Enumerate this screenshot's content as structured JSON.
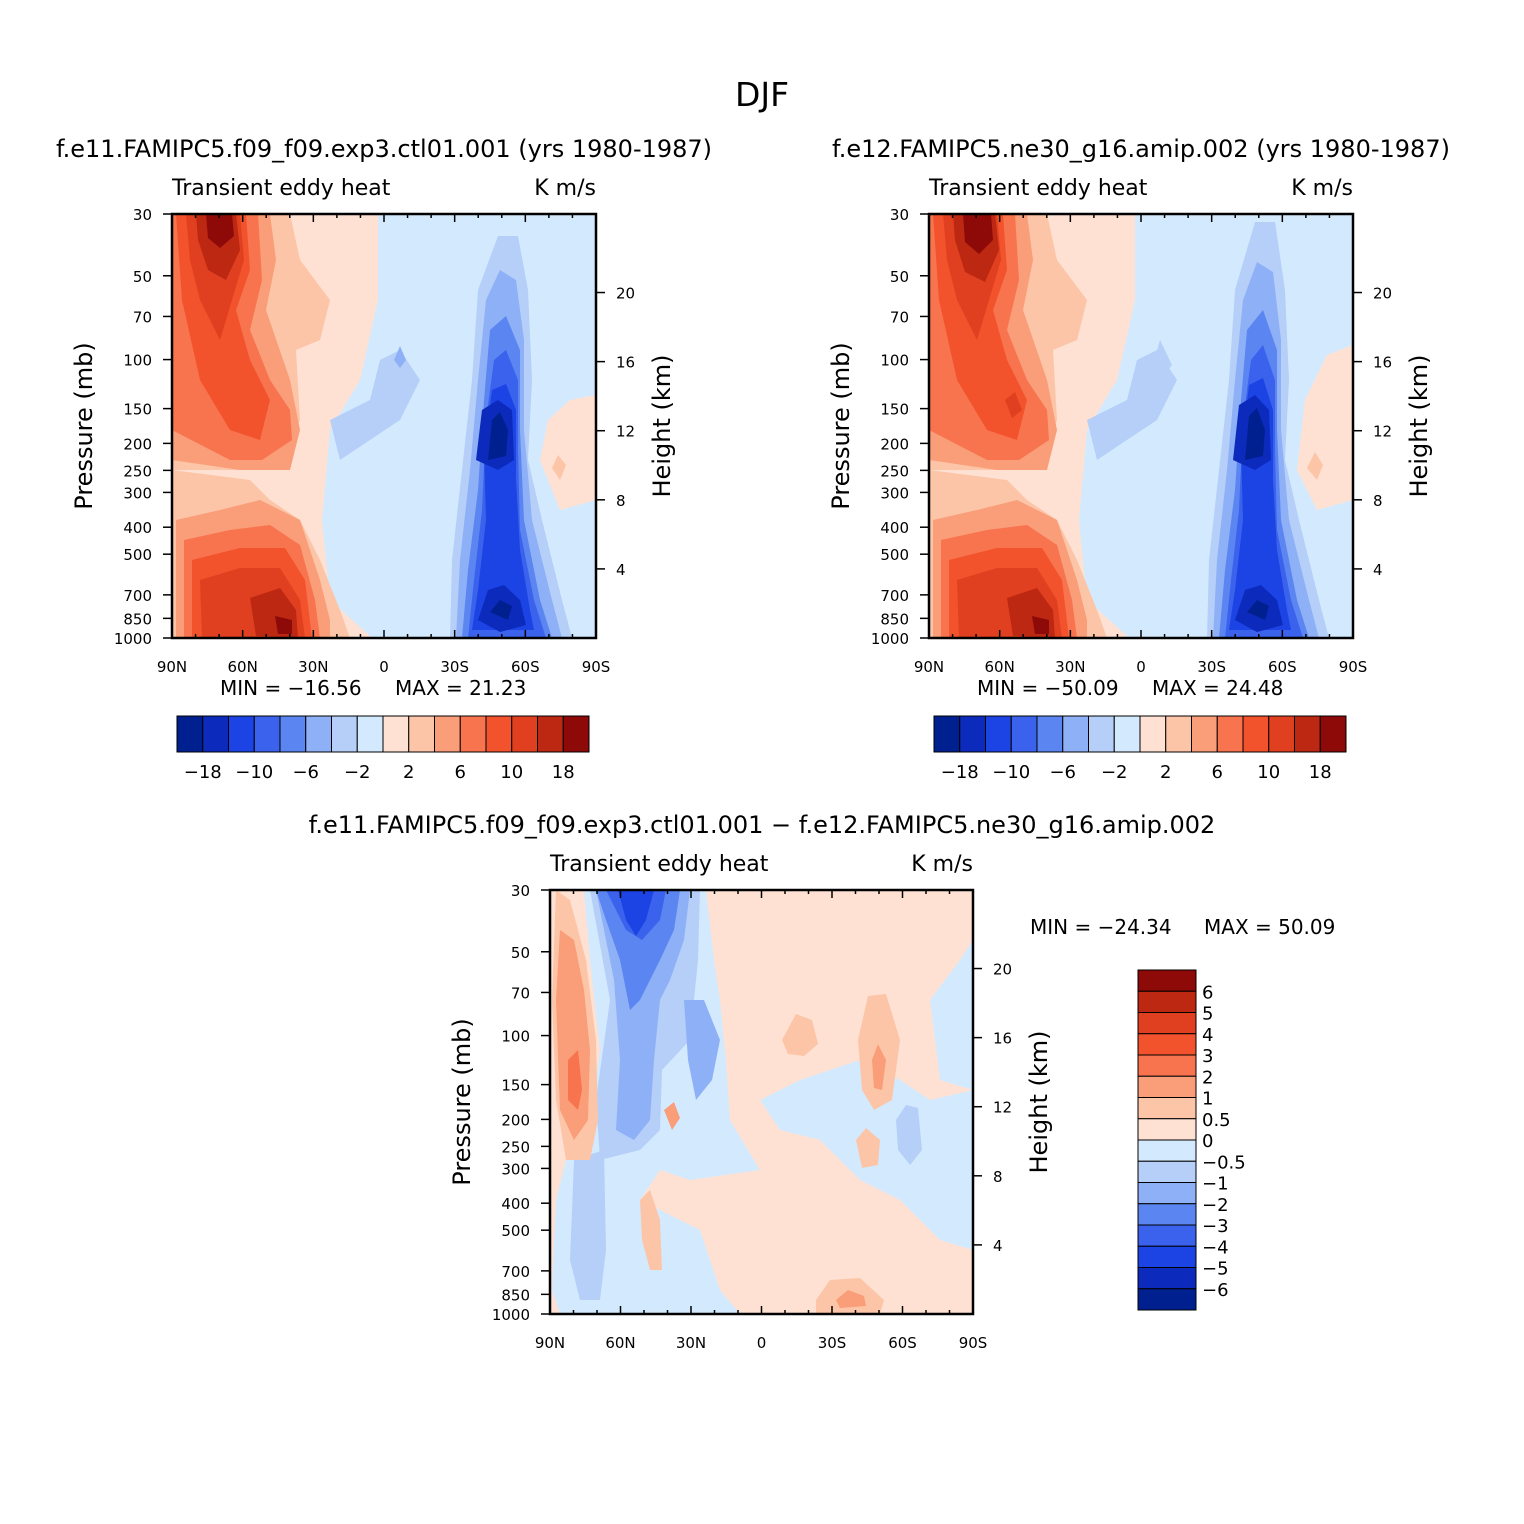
{
  "main_title": "DJF",
  "chart_data": [
    {
      "type": "heatmap",
      "id": "p1",
      "title": "f.e11.FAMIPC5.f09_f09.exp3.ctl01.001 (yrs 1980-1987)",
      "subtitle_left": "Transient eddy heat",
      "subtitle_right": "K m/s",
      "xlabel": "",
      "ylabel": "Pressure (mb)",
      "y2label": "Height (km)",
      "x_ticks": [
        "90N",
        "60N",
        "30N",
        "0",
        "30S",
        "60S",
        "90S"
      ],
      "x_tick_values": [
        90,
        60,
        30,
        0,
        -30,
        -60,
        -90
      ],
      "y_ticks": [
        "30",
        "50",
        "70",
        "100",
        "150",
        "200",
        "250",
        "300",
        "400",
        "500",
        "700",
        "850",
        "1000"
      ],
      "y_tick_values": [
        30,
        50,
        70,
        100,
        150,
        200,
        250,
        300,
        400,
        500,
        700,
        850,
        1000
      ],
      "y2_ticks": [
        "4",
        "8",
        "12",
        "16",
        "20"
      ],
      "ylim": [
        1000,
        30
      ],
      "xlim": [
        90,
        -90
      ],
      "min_label": "MIN = −16.56",
      "max_label": "MAX =  21.23",
      "colorbar": {
        "orientation": "horizontal",
        "labels": [
          "−18",
          "−10",
          "−6",
          "−2",
          "2",
          "6",
          "10",
          "18"
        ],
        "levels": [
          -18,
          -14,
          -10,
          -8,
          -6,
          -4,
          -2,
          0,
          2,
          4,
          6,
          8,
          10,
          14,
          18
        ]
      },
      "features": [
        {
          "lat": 65,
          "p": 35,
          "value": 20
        },
        {
          "lat": 60,
          "p": 80,
          "value": 12
        },
        {
          "lat": 50,
          "p": 170,
          "value": 8
        },
        {
          "lat": 45,
          "p": 830,
          "value": 18
        },
        {
          "lat": 60,
          "p": 650,
          "value": 10
        },
        {
          "lat": -50,
          "p": 190,
          "value": -16
        },
        {
          "lat": -50,
          "p": 820,
          "value": -15
        },
        {
          "lat": -70,
          "p": 240,
          "value": 2
        }
      ]
    },
    {
      "type": "heatmap",
      "id": "p2",
      "title": "f.e12.FAMIPC5.ne30_g16.amip.002 (yrs 1980-1987)",
      "subtitle_left": "Transient eddy heat",
      "subtitle_right": "K m/s",
      "xlabel": "",
      "ylabel": "Pressure (mb)",
      "y2label": "Height (km)",
      "x_ticks": [
        "90N",
        "60N",
        "30N",
        "0",
        "30S",
        "60S",
        "90S"
      ],
      "x_tick_values": [
        90,
        60,
        30,
        0,
        -30,
        -60,
        -90
      ],
      "y_ticks": [
        "30",
        "50",
        "70",
        "100",
        "150",
        "200",
        "250",
        "300",
        "400",
        "500",
        "700",
        "850",
        "1000"
      ],
      "y_tick_values": [
        30,
        50,
        70,
        100,
        150,
        200,
        250,
        300,
        400,
        500,
        700,
        850,
        1000
      ],
      "y2_ticks": [
        "4",
        "8",
        "12",
        "16",
        "20"
      ],
      "ylim": [
        1000,
        30
      ],
      "xlim": [
        90,
        -90
      ],
      "min_label": "MIN = −50.09",
      "max_label": "MAX =  24.48",
      "colorbar": {
        "orientation": "horizontal",
        "labels": [
          "−18",
          "−10",
          "−6",
          "−2",
          "2",
          "6",
          "10",
          "18"
        ],
        "levels": [
          -18,
          -14,
          -10,
          -8,
          -6,
          -4,
          -2,
          0,
          2,
          4,
          6,
          8,
          10,
          14,
          18
        ]
      },
      "features": [
        {
          "lat": 65,
          "p": 35,
          "value": 22
        },
        {
          "lat": 60,
          "p": 80,
          "value": 12
        },
        {
          "lat": 50,
          "p": 170,
          "value": 9
        },
        {
          "lat": 45,
          "p": 830,
          "value": 19
        },
        {
          "lat": 60,
          "p": 650,
          "value": 10
        },
        {
          "lat": -50,
          "p": 190,
          "value": -16
        },
        {
          "lat": -50,
          "p": 820,
          "value": -15
        },
        {
          "lat": -70,
          "p": 240,
          "value": 2
        }
      ]
    },
    {
      "type": "heatmap",
      "id": "p3",
      "title": "f.e11.FAMIPC5.f09_f09.exp3.ctl01.001 − f.e12.FAMIPC5.ne30_g16.amip.002",
      "subtitle_left": "Transient eddy heat",
      "subtitle_right": "K m/s",
      "xlabel": "",
      "ylabel": "Pressure (mb)",
      "y2label": "Height (km)",
      "x_ticks": [
        "90N",
        "60N",
        "30N",
        "0",
        "30S",
        "60S",
        "90S"
      ],
      "x_tick_values": [
        90,
        60,
        30,
        0,
        -30,
        -60,
        -90
      ],
      "y_ticks": [
        "30",
        "50",
        "70",
        "100",
        "150",
        "200",
        "250",
        "300",
        "400",
        "500",
        "700",
        "850",
        "1000"
      ],
      "y_tick_values": [
        30,
        50,
        70,
        100,
        150,
        200,
        250,
        300,
        400,
        500,
        700,
        850,
        1000
      ],
      "y2_ticks": [
        "4",
        "8",
        "12",
        "16",
        "20"
      ],
      "ylim": [
        1000,
        30
      ],
      "xlim": [
        90,
        -90
      ],
      "min_label": "MIN = −24.34",
      "max_label": "MAX =   50.09",
      "colorbar": {
        "orientation": "vertical",
        "labels": [
          "6",
          "5",
          "4",
          "3",
          "2",
          "1",
          "0.5",
          "0",
          "−0.5",
          "−1",
          "−2",
          "−3",
          "−4",
          "−5",
          "−6"
        ],
        "levels": [
          6,
          5,
          4,
          3,
          2,
          1,
          0.5,
          0,
          -0.5,
          -1,
          -2,
          -3,
          -4,
          -5,
          -6
        ]
      },
      "features": [
        {
          "lat": 80,
          "p": 130,
          "value": 2
        },
        {
          "lat": 55,
          "p": 35,
          "value": -4
        },
        {
          "lat": 25,
          "p": 110,
          "value": -2
        },
        {
          "lat": 40,
          "p": 200,
          "value": 1.5
        },
        {
          "lat": 50,
          "p": 500,
          "value": 1
        },
        {
          "lat": -15,
          "p": 100,
          "value": 1
        },
        {
          "lat": -50,
          "p": 130,
          "value": 1.5
        },
        {
          "lat": -60,
          "p": 220,
          "value": -1
        },
        {
          "lat": -35,
          "p": 880,
          "value": 2
        }
      ]
    }
  ]
}
